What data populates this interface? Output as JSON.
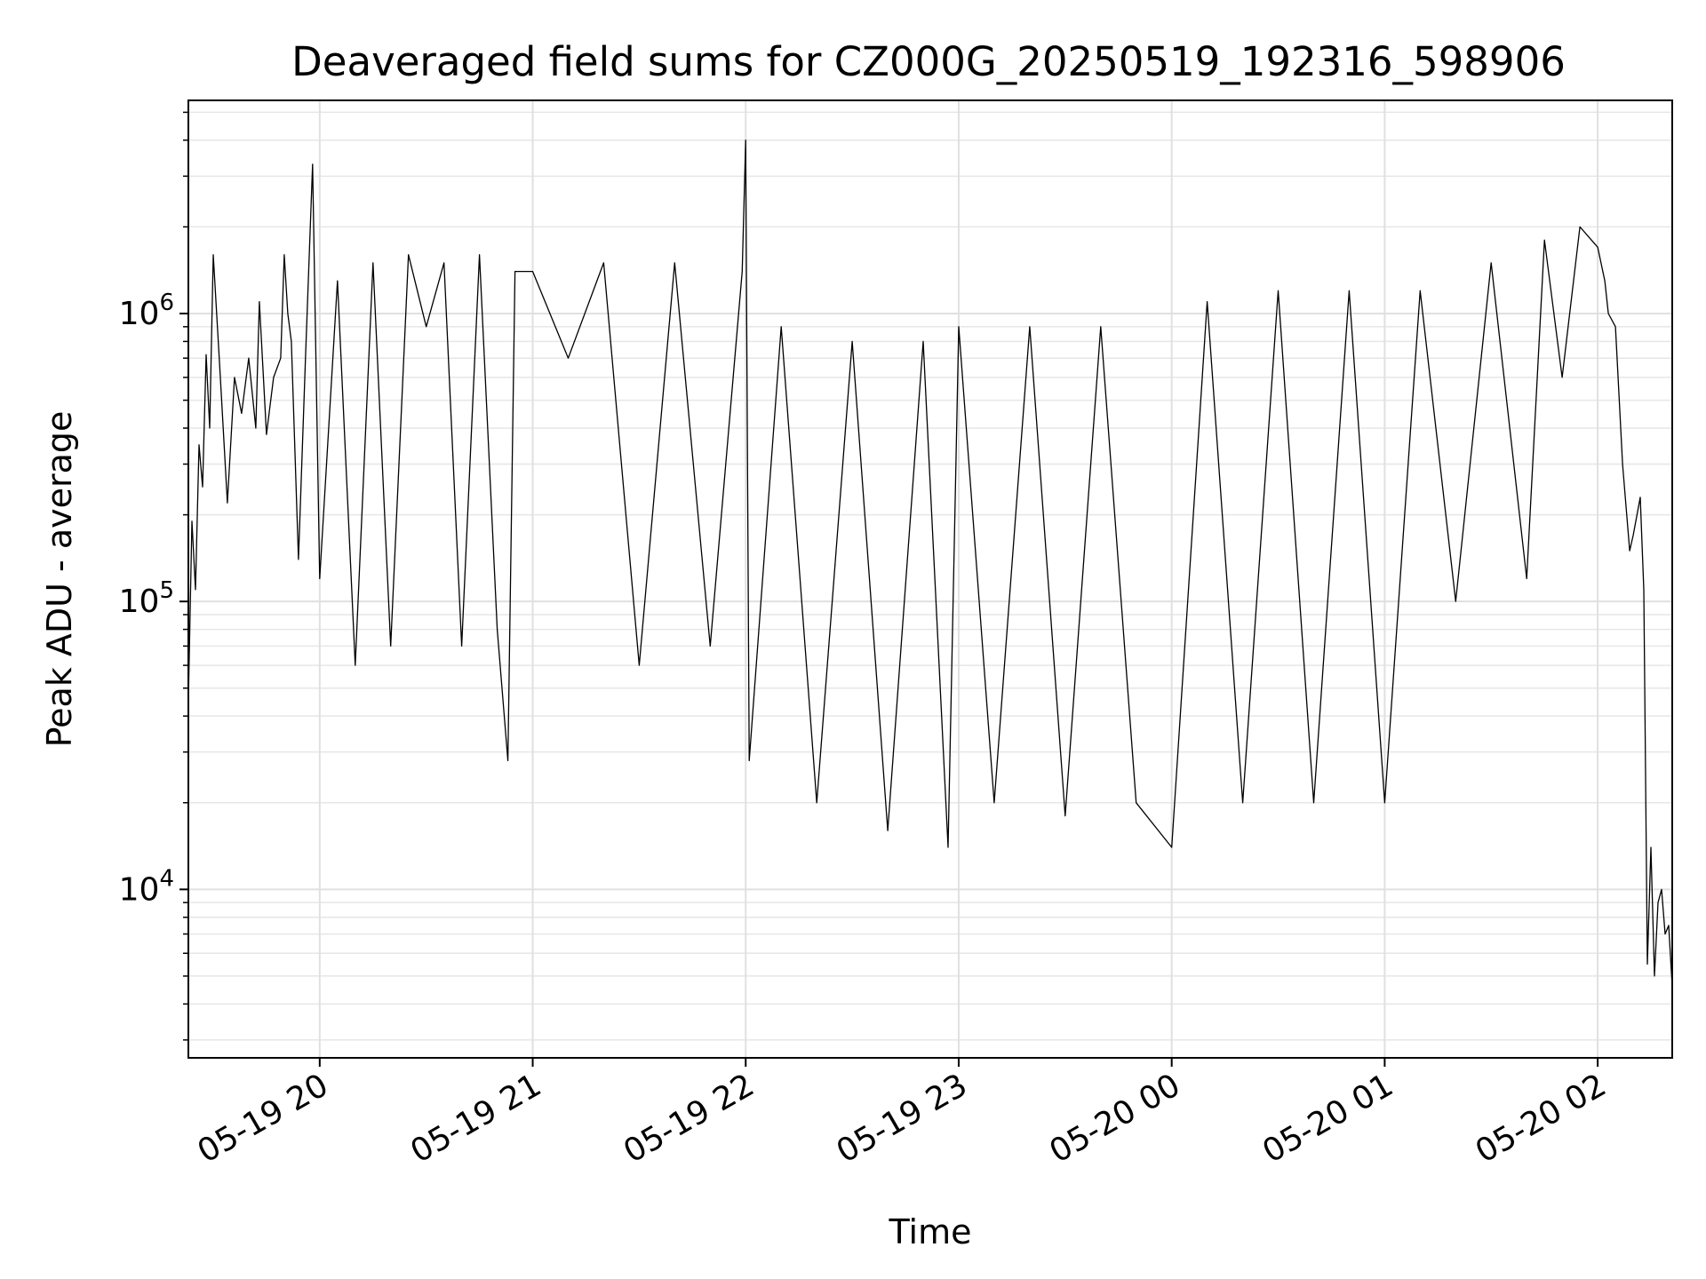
{
  "chart_data": {
    "type": "line",
    "title": "Deaveraged field sums for CZ000G_20250519_192316_598906",
    "xlabel": "Time",
    "ylabel": "Peak ADU - average",
    "yscale": "log",
    "ylim": [
      2600,
      5500000
    ],
    "xlim": [
      "2025-05-19 19:23",
      "2025-05-20 02:21"
    ],
    "grid": true,
    "grid_minor": true,
    "line_color": "#000000",
    "x_ticks": [
      {
        "value": "2025-05-19 20:00",
        "label": "05-19 20"
      },
      {
        "value": "2025-05-19 21:00",
        "label": "05-19 21"
      },
      {
        "value": "2025-05-19 22:00",
        "label": "05-19 22"
      },
      {
        "value": "2025-05-19 23:00",
        "label": "05-19 23"
      },
      {
        "value": "2025-05-20 00:00",
        "label": "05-20 00"
      },
      {
        "value": "2025-05-20 01:00",
        "label": "05-20 01"
      },
      {
        "value": "2025-05-20 02:00",
        "label": "05-20 02"
      }
    ],
    "y_ticks": [
      {
        "value": 10000,
        "base": "10",
        "exp": "4"
      },
      {
        "value": 100000,
        "base": "10",
        "exp": "5"
      },
      {
        "value": 1000000,
        "base": "10",
        "exp": "6"
      }
    ],
    "series": [
      {
        "x": [
          "2025-05-19 19:23",
          "2025-05-19 19:24",
          "2025-05-19 19:25",
          "2025-05-19 19:26",
          "2025-05-19 19:27",
          "2025-05-19 19:28",
          "2025-05-19 19:29",
          "2025-05-19 19:30",
          "2025-05-19 19:32",
          "2025-05-19 19:34",
          "2025-05-19 19:36",
          "2025-05-19 19:38",
          "2025-05-19 19:40",
          "2025-05-19 19:42",
          "2025-05-19 19:43",
          "2025-05-19 19:45",
          "2025-05-19 19:47",
          "2025-05-19 19:49",
          "2025-05-19 19:50",
          "2025-05-19 19:51",
          "2025-05-19 19:52",
          "2025-05-19 19:54",
          "2025-05-19 19:56",
          "2025-05-19 19:58",
          "2025-05-19 20:00",
          "2025-05-19 20:05",
          "2025-05-19 20:10",
          "2025-05-19 20:15",
          "2025-05-19 20:20",
          "2025-05-19 20:25",
          "2025-05-19 20:30",
          "2025-05-19 20:35",
          "2025-05-19 20:40",
          "2025-05-19 20:45",
          "2025-05-19 20:50",
          "2025-05-19 20:53",
          "2025-05-19 20:55",
          "2025-05-19 21:00",
          "2025-05-19 21:10",
          "2025-05-19 21:20",
          "2025-05-19 21:30",
          "2025-05-19 21:40",
          "2025-05-19 21:50",
          "2025-05-19 21:59",
          "2025-05-19 22:00",
          "2025-05-19 22:01",
          "2025-05-19 22:10",
          "2025-05-19 22:20",
          "2025-05-19 22:30",
          "2025-05-19 22:40",
          "2025-05-19 22:50",
          "2025-05-19 22:57",
          "2025-05-19 23:00",
          "2025-05-19 23:10",
          "2025-05-19 23:20",
          "2025-05-19 23:30",
          "2025-05-19 23:40",
          "2025-05-19 23:50",
          "2025-05-20 00:00",
          "2025-05-20 00:10",
          "2025-05-20 00:20",
          "2025-05-20 00:30",
          "2025-05-20 00:40",
          "2025-05-20 00:50",
          "2025-05-20 01:00",
          "2025-05-20 01:10",
          "2025-05-20 01:20",
          "2025-05-20 01:30",
          "2025-05-20 01:40",
          "2025-05-20 01:45",
          "2025-05-20 01:50",
          "2025-05-20 01:55",
          "2025-05-20 02:00",
          "2025-05-20 02:02",
          "2025-05-20 02:03",
          "2025-05-20 02:05",
          "2025-05-20 02:07",
          "2025-05-20 02:09",
          "2025-05-20 02:10",
          "2025-05-20 02:12",
          "2025-05-20 02:13",
          "2025-05-20 02:14",
          "2025-05-20 02:15",
          "2025-05-20 02:16",
          "2025-05-20 02:17",
          "2025-05-20 02:18",
          "2025-05-20 02:19",
          "2025-05-20 02:20",
          "2025-05-20 02:21"
        ],
        "y": [
          45000,
          190000,
          110000,
          350000,
          250000,
          720000,
          400000,
          1600000,
          600000,
          220000,
          600000,
          450000,
          700000,
          400000,
          1100000,
          380000,
          600000,
          700000,
          1600000,
          1000000,
          800000,
          140000,
          700000,
          3300000,
          120000,
          1300000,
          60000,
          1500000,
          70000,
          1600000,
          900000,
          1500000,
          70000,
          1600000,
          80000,
          28000,
          1400000,
          1400000,
          700000,
          1500000,
          60000,
          1500000,
          70000,
          1400000,
          4000000,
          28000,
          900000,
          20000,
          800000,
          16000,
          800000,
          14000,
          900000,
          20000,
          900000,
          18000,
          900000,
          20000,
          14000,
          1100000,
          20000,
          1200000,
          20000,
          1200000,
          20000,
          1200000,
          100000,
          1500000,
          120000,
          1800000,
          600000,
          2000000,
          1700000,
          1300000,
          1000000,
          900000,
          300000,
          150000,
          170000,
          230000,
          110000,
          5500,
          14000,
          5000,
          9000,
          10000,
          7000,
          7500,
          4600
        ]
      }
    ]
  }
}
